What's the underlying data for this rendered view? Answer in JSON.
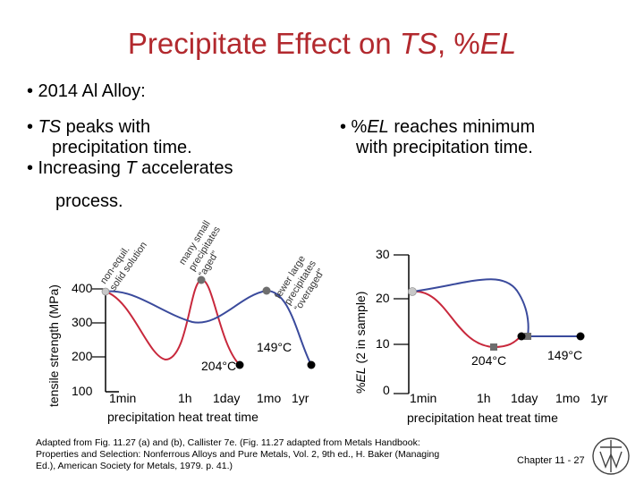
{
  "slide": {
    "title_prefix": "Precipitate Effect on ",
    "title_ts": "TS",
    "title_comma": ", %",
    "title_el": "EL",
    "bullet_alloy": "• 2014 Al Alloy:",
    "left_b1_dot": "• ",
    "left_b1_ts": "TS",
    "left_b1_rest": " peaks with",
    "left_b1_line2": "precipitation time.",
    "left_b2_pre": "•  Increasing ",
    "left_b2_t": "T",
    "left_b2_rest": " accelerates",
    "left_b2_line2": "process.",
    "right_b1_dot": "• %",
    "right_b1_el": "EL",
    "right_b1_rest": " reaches minimum",
    "right_b1_line2": "with precipitation time."
  },
  "chart_left": {
    "ylabel": "tensile strength (MPa)",
    "yticks": [
      "400",
      "300",
      "200",
      "100"
    ],
    "xticks": [
      "1min",
      "1h",
      "1day",
      "1mo",
      "1yr"
    ],
    "xlabel": "precipitation heat treat time",
    "temp_red": "204°C",
    "temp_blue": "149°C",
    "ann1_line1": "non-equil.",
    "ann1_line2": "solid solution",
    "ann2_line1": "many small",
    "ann2_line2": "precipitates",
    "ann2_line3": "“aged”",
    "ann3_line1": "fewer large",
    "ann3_line2": "precipitates",
    "ann3_line3": "“overaged”"
  },
  "chart_right": {
    "ylabel_pre": "%",
    "ylabel_el": "EL",
    "ylabel_rest": " (2 in sample)",
    "yticks": [
      "30",
      "20",
      "10",
      "0"
    ],
    "xticks": [
      "1min",
      "1h",
      "1day",
      "1mo",
      "1yr"
    ],
    "xlabel": "precipitation heat treat time",
    "temp_red": "204°C",
    "temp_blue": "149°C"
  },
  "footer": {
    "credit_line1": "Adapted from Fig. 11.27 (a) and (b), Callister 7e.  (Fig. 11.27 adapted from Metals Handbook:",
    "credit_line2": "Properties and Selection:  Nonferrous Alloys and Pure Metals, Vol. 2, 9th ed., H. Baker (Managing",
    "credit_line3": "Ed.), American Society for Metals, 1979. p. 41.)",
    "chapter": "Chapter 11 - 27"
  },
  "colors": {
    "title": "#b2292e",
    "curve_red": "#c8283c",
    "curve_blue": "#3a4a9c",
    "start_dot": "#c8c8c8",
    "mid_dot": "#6e6e6e",
    "end_dot": "#000000"
  }
}
